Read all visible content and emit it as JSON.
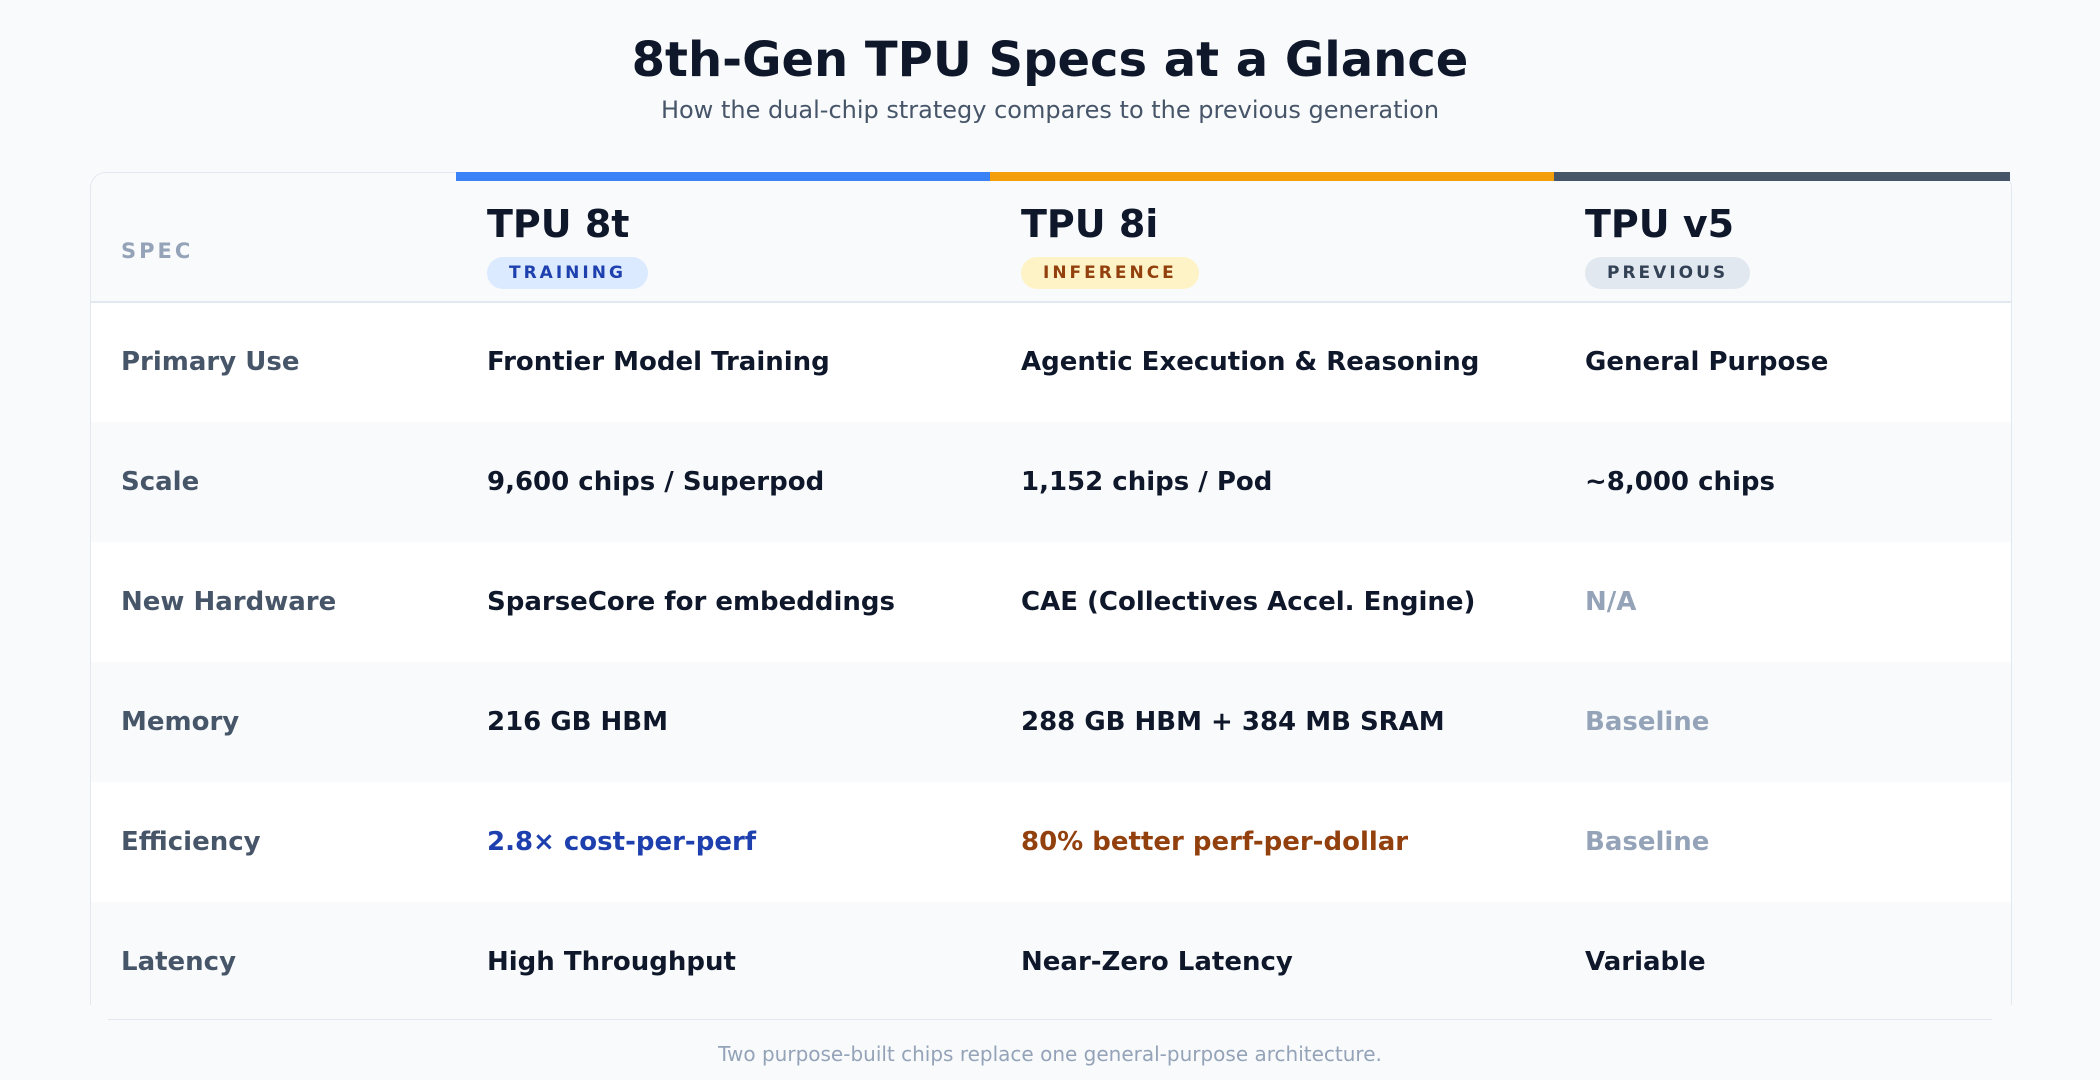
{
  "header": {
    "title": "8th-Gen TPU Specs at a Glance",
    "subtitle": "How the dual-chip strategy compares to the previous generation"
  },
  "table": {
    "spec_header": "SPEC",
    "columns": [
      {
        "name": "TPU 8t",
        "badge": "TRAINING",
        "accent_color": "#3b82f6"
      },
      {
        "name": "TPU 8i",
        "badge": "INFERENCE",
        "accent_color": "#f59e0b"
      },
      {
        "name": "TPU v5",
        "badge": "PREVIOUS",
        "accent_color": "#475569"
      }
    ],
    "rows": [
      {
        "label": "Primary Use",
        "values": [
          "Frontier Model Training",
          "Agentic Execution & Reasoning",
          "General Purpose"
        ]
      },
      {
        "label": "Scale",
        "values": [
          "9,600 chips / Superpod",
          "1,152 chips / Pod",
          "~8,000 chips"
        ]
      },
      {
        "label": "New Hardware",
        "values": [
          "SparseCore for embeddings",
          "CAE (Collectives Accel. Engine)",
          "N/A"
        ]
      },
      {
        "label": "Memory",
        "values": [
          "216 GB HBM",
          "288 GB HBM + 384 MB SRAM",
          "Baseline"
        ]
      },
      {
        "label": "Efficiency",
        "values": [
          "2.8× cost-per-perf",
          "80% better perf-per-dollar",
          "Baseline"
        ]
      },
      {
        "label": "Latency",
        "values": [
          "High Throughput",
          "Near-Zero Latency",
          "Variable"
        ]
      }
    ]
  },
  "footer": {
    "note": "Two purpose-built chips replace one general-purpose architecture."
  },
  "colors": {
    "training_accent": "#3b82f6",
    "inference_accent": "#f59e0b",
    "previous_accent": "#475569",
    "highlight_blue": "#1e40af",
    "highlight_amber": "#92400e",
    "muted": "#94a3b8"
  }
}
